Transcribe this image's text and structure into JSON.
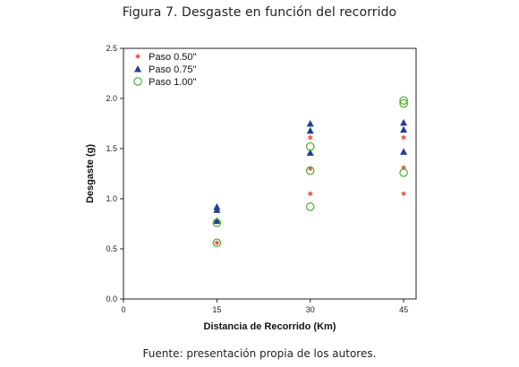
{
  "figure": {
    "title": "Figura 7. Desgaste en función del recorrido",
    "source": "Fuente: presentación propia de los autores."
  },
  "colors": {
    "paso_050": "#e0463a",
    "paso_075": "#1f3f8f",
    "paso_100": "#4caa2e",
    "axis": "#222222"
  },
  "chart_data": {
    "type": "scatter",
    "xlabel": "Distancia de Recorrido (Km)",
    "ylabel": "Desgaste (g)",
    "xlim": [
      0,
      47
    ],
    "ylim": [
      0,
      2.5
    ],
    "x_ticks": [
      0,
      15,
      30,
      45
    ],
    "x_tick_labels": [
      "0",
      "15",
      "30",
      "45"
    ],
    "y_ticks": [
      0,
      0.5,
      1.0,
      1.5,
      2.0,
      2.5
    ],
    "y_tick_labels": [
      "0.0",
      "0.5",
      "1.0",
      "1.5",
      "2.0",
      "2.5"
    ],
    "grid": false,
    "legend_position": "top-left",
    "series": [
      {
        "name": "Paso 0.50\"",
        "marker": "asterisk",
        "color_key": "paso_050",
        "points": [
          {
            "x": 15,
            "y": 0.56
          },
          {
            "x": 15,
            "y": 0.77
          },
          {
            "x": 30,
            "y": 1.05
          },
          {
            "x": 30,
            "y": 1.3
          },
          {
            "x": 30,
            "y": 1.61
          },
          {
            "x": 45,
            "y": 1.05
          },
          {
            "x": 45,
            "y": 1.31
          },
          {
            "x": 45,
            "y": 1.61
          }
        ]
      },
      {
        "name": "Paso 0.75\"",
        "marker": "triangle",
        "color_key": "paso_075",
        "points": [
          {
            "x": 15,
            "y": 0.78
          },
          {
            "x": 15,
            "y": 0.89
          },
          {
            "x": 15,
            "y": 0.92
          },
          {
            "x": 30,
            "y": 1.46
          },
          {
            "x": 30,
            "y": 1.68
          },
          {
            "x": 30,
            "y": 1.75
          },
          {
            "x": 45,
            "y": 1.47
          },
          {
            "x": 45,
            "y": 1.69
          },
          {
            "x": 45,
            "y": 1.76
          }
        ]
      },
      {
        "name": "Paso 1.00\"",
        "marker": "circle",
        "color_key": "paso_100",
        "points": [
          {
            "x": 15,
            "y": 0.56
          },
          {
            "x": 15,
            "y": 0.76
          },
          {
            "x": 30,
            "y": 0.92
          },
          {
            "x": 30,
            "y": 1.28
          },
          {
            "x": 30,
            "y": 1.52
          },
          {
            "x": 45,
            "y": 1.26
          },
          {
            "x": 45,
            "y": 1.95
          },
          {
            "x": 45,
            "y": 1.98
          }
        ]
      }
    ]
  }
}
